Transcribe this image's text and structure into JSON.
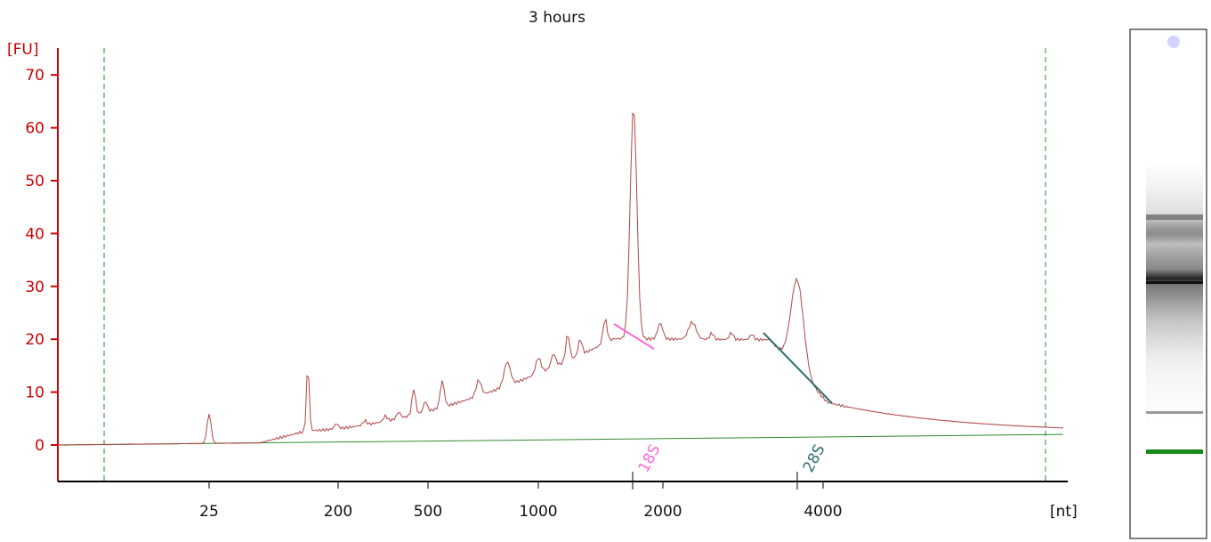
{
  "chart_data": {
    "type": "line",
    "title": "3 hours",
    "y_unit": "[FU]",
    "x_unit": "[nt]",
    "ylim": [
      -7,
      75
    ],
    "y_ticks": [
      0,
      10,
      20,
      30,
      40,
      50,
      60,
      70
    ],
    "x_tick_labels": [
      "25",
      "200",
      "500",
      "1000",
      "2000",
      "4000"
    ],
    "grid": false,
    "colors": {
      "axis": "#cc0000",
      "trace": "#b04545",
      "baseline": "#2e8b2e",
      "marker_18S": "#ff66dd",
      "marker_28S": "#2f6f6f"
    },
    "markers": [
      {
        "label": "18S",
        "color": "#ff66dd"
      },
      {
        "label": "28S",
        "color": "#2f6f6f"
      }
    ],
    "gel": {
      "lower_marker_color": "#1a8a1a"
    }
  }
}
